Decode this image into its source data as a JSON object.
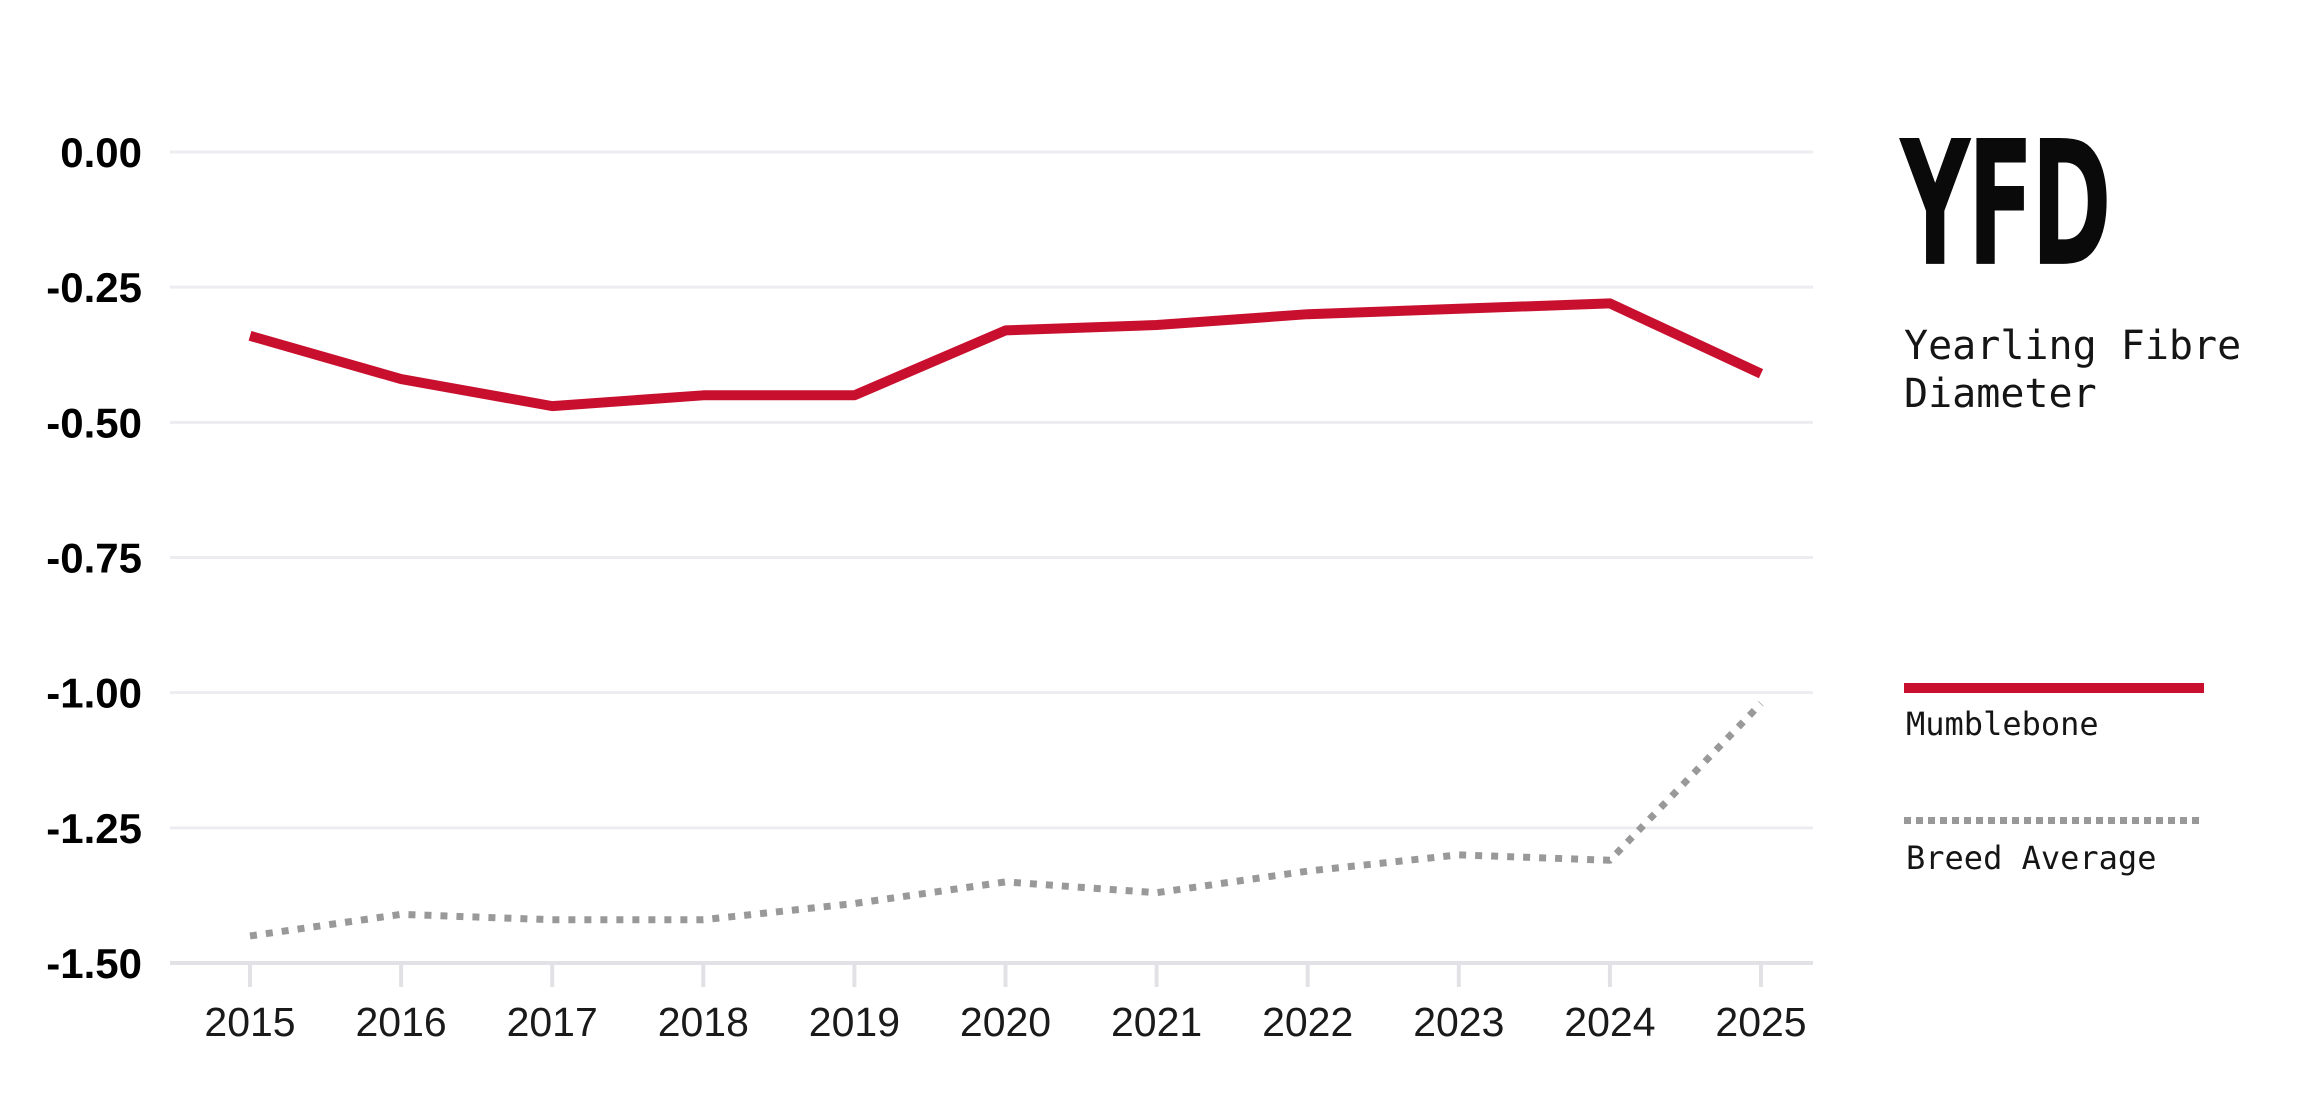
{
  "logo": "YFD",
  "subtitle": "Yearling Fibre Diameter",
  "legend": [
    {
      "label": "Mumblebone",
      "color": "#C8102E",
      "style": "solid"
    },
    {
      "label": "Breed Average",
      "color": "#999999",
      "style": "dotted"
    }
  ],
  "colors": {
    "background": "#ffffff",
    "grid": "#ededf1",
    "axis": "#e2e2e6",
    "x_tick_label": "#1a1a1a",
    "y_tick_label": "#000000",
    "mumblebone_red": "#C8102E",
    "breed_average_grey": "#999999"
  },
  "chart_data": {
    "type": "line",
    "title": "YFD",
    "subtitle": "Yearling Fibre Diameter",
    "xlabel": "",
    "ylabel": "",
    "x": [
      2015,
      2016,
      2017,
      2018,
      2019,
      2020,
      2021,
      2022,
      2023,
      2024,
      2025
    ],
    "series": [
      {
        "name": "Mumblebone",
        "color": "#C8102E",
        "line_style": "solid",
        "values": [
          -0.34,
          -0.42,
          -0.47,
          -0.45,
          -0.45,
          -0.33,
          -0.32,
          -0.3,
          -0.29,
          -0.28,
          -0.41
        ]
      },
      {
        "name": "Breed Average",
        "color": "#999999",
        "line_style": "dotted",
        "values": [
          -1.45,
          -1.41,
          -1.42,
          -1.42,
          -1.39,
          -1.35,
          -1.37,
          -1.33,
          -1.3,
          -1.31,
          -1.02
        ]
      }
    ],
    "ylim": [
      -1.5,
      0
    ],
    "yticks": [
      0,
      -0.25,
      -0.5,
      -0.75,
      -1.0,
      -1.25,
      -1.5
    ],
    "ytick_labels": [
      "0.00",
      "-0.25",
      "-0.50",
      "-0.75",
      "-1.00",
      "-1.25",
      "-1.50"
    ],
    "grid": true,
    "legend_position": "right"
  }
}
